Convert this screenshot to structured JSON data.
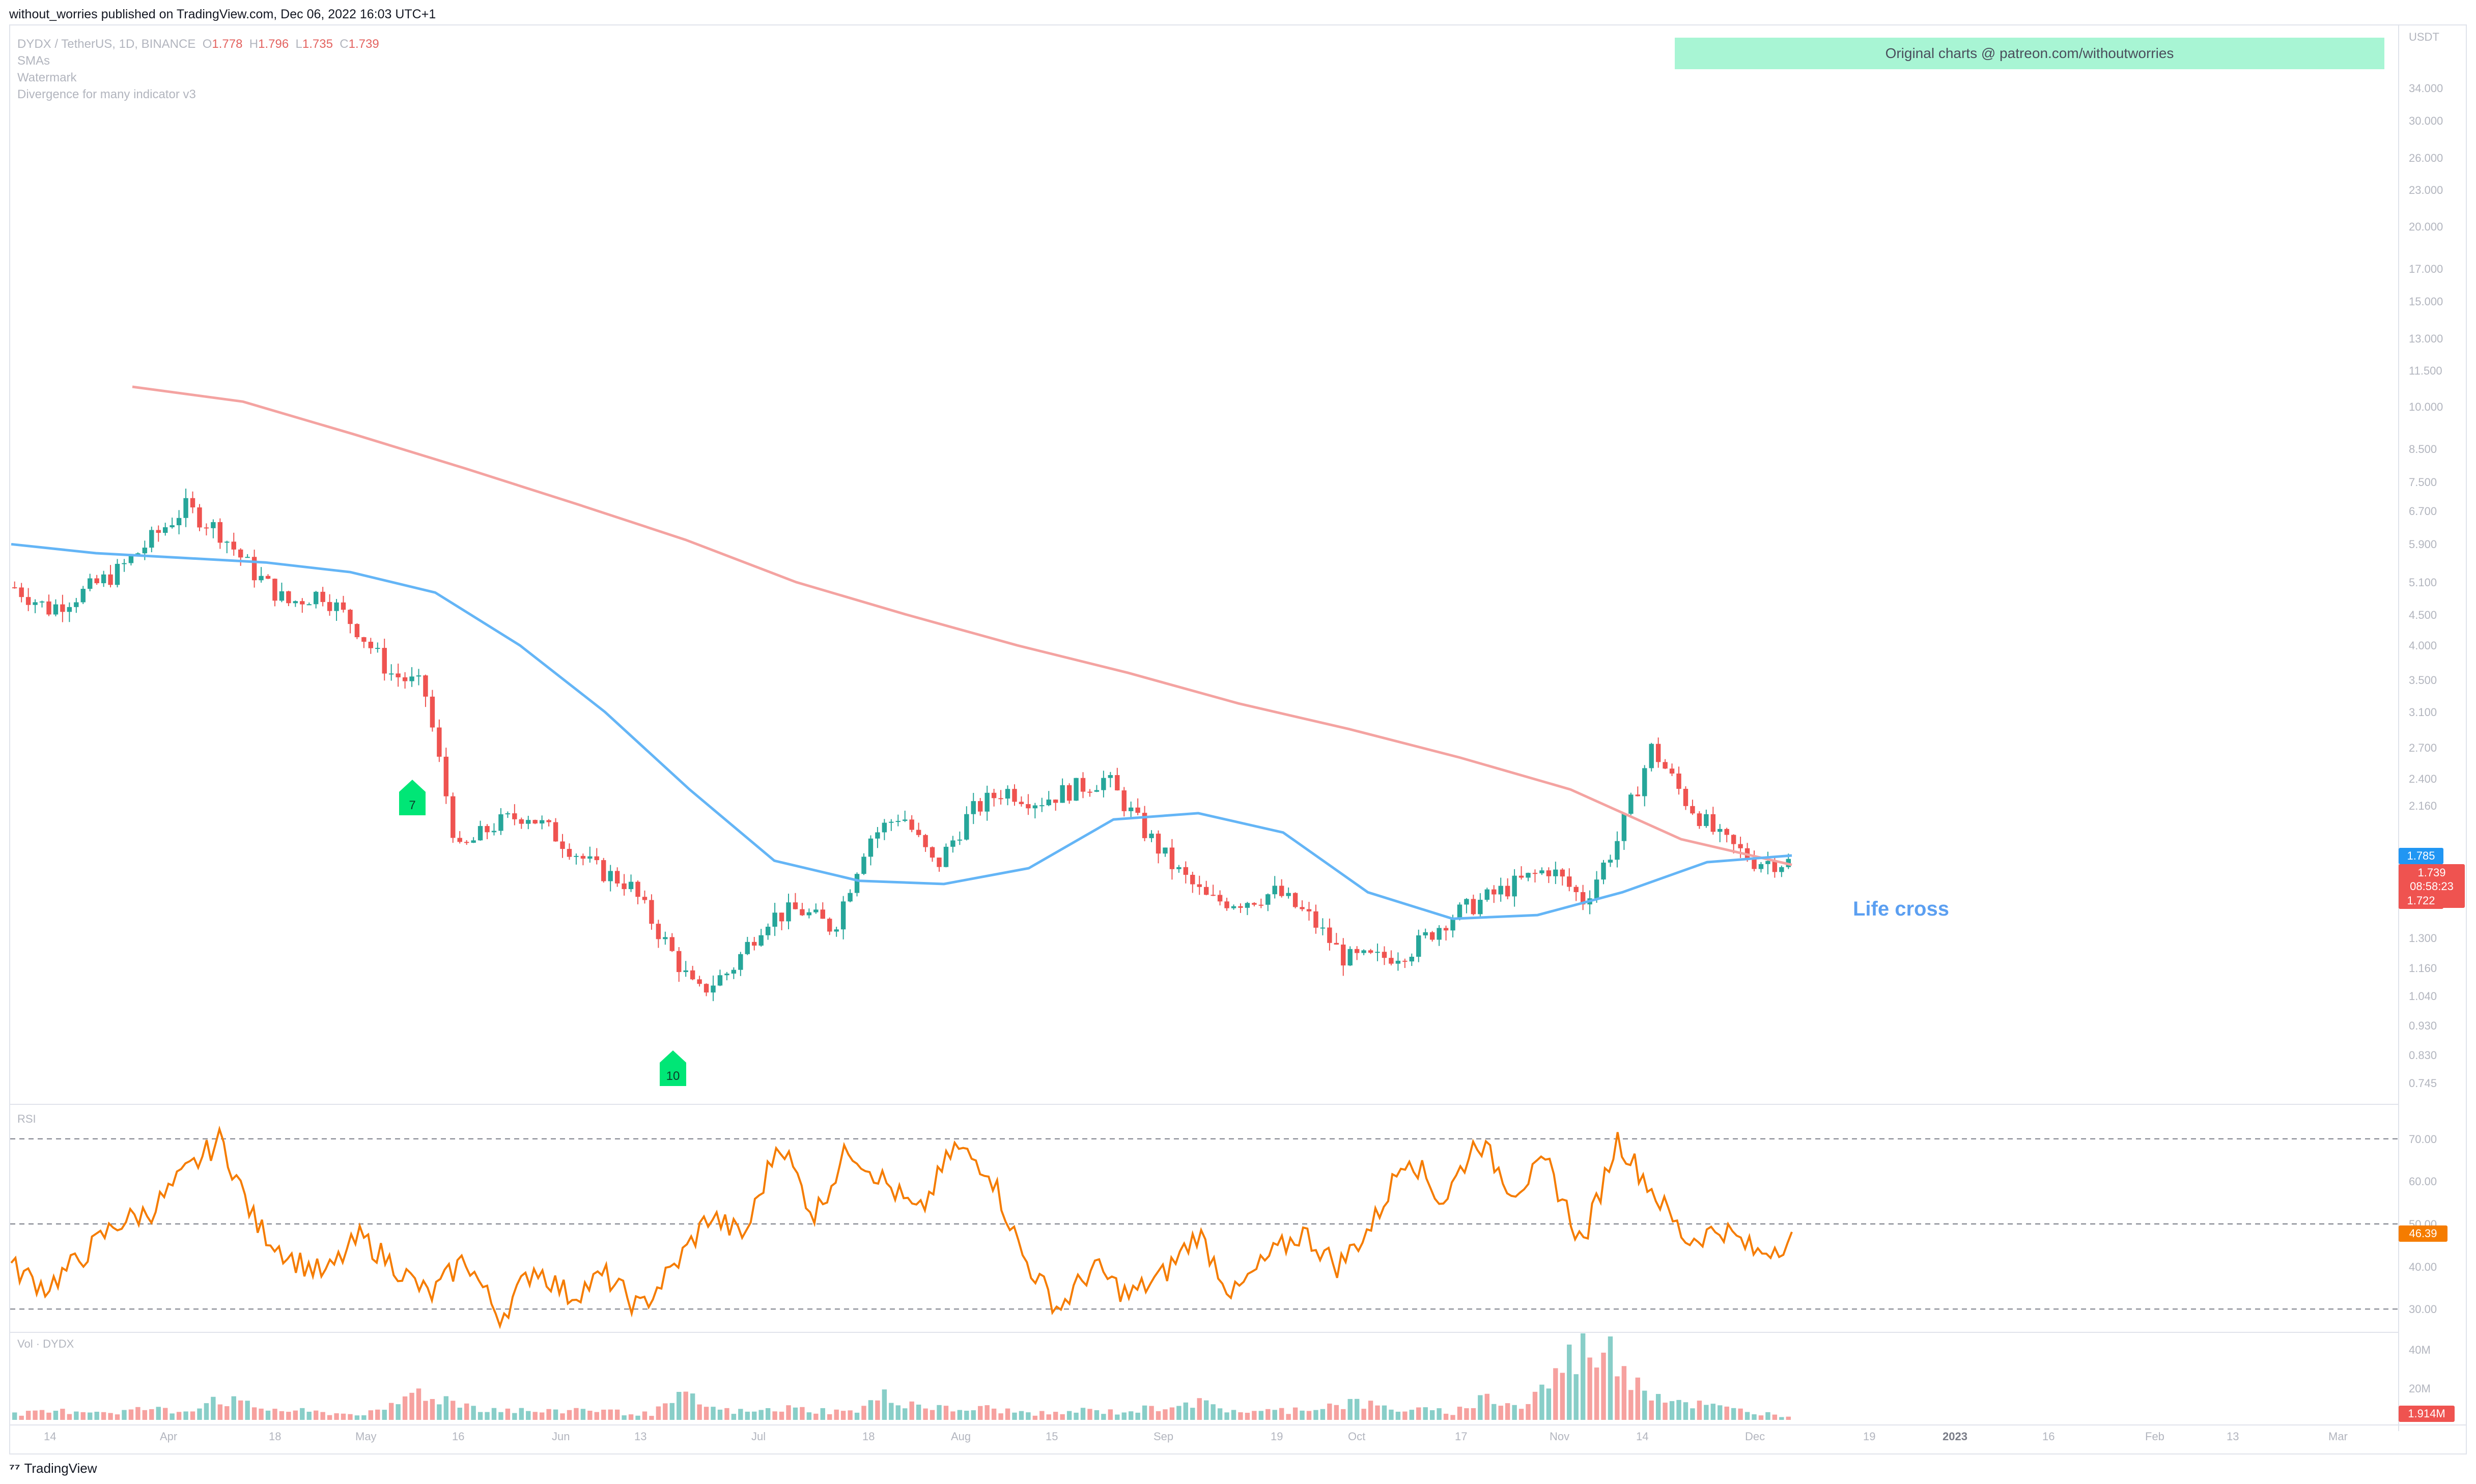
{
  "header": {
    "published_by": "without_worries published on TradingView.com, Dec 06, 2022 16:03 UTC+1"
  },
  "legend": {
    "symbol": "DYDX / TetherUS, 1D, BINANCE",
    "o_label": "O",
    "o_value": "1.778",
    "h_label": "H",
    "h_value": "1.796",
    "l_label": "L",
    "l_value": "1.735",
    "c_label": "C",
    "c_value": "1.739",
    "indicators": [
      "SMAs",
      "Watermark",
      "Divergence for many indicator v3"
    ]
  },
  "banner": {
    "text": "Original charts @ patreon.com/withoutworries"
  },
  "annotation": {
    "text": "Life cross"
  },
  "footer": {
    "brand": "TradingView"
  },
  "colors": {
    "up": "#26a69a",
    "down": "#ef5350",
    "sma_fast": "#64b5f6",
    "sma_slow": "#f4a3a1",
    "rsi": "#f57c00",
    "banner": "#a8f5d4",
    "marker": "#00e676"
  },
  "chart_data": [
    {
      "type": "candlestick",
      "title": "DYDX / TetherUS, 1D, BINANCE",
      "yscale": "log",
      "ylim": [
        0.7,
        40
      ],
      "price_axis_ticks": [
        "USDT",
        "34.000",
        "30.000",
        "26.000",
        "23.000",
        "20.000",
        "17.000",
        "15.000",
        "13.000",
        "11.500",
        "10.000",
        "8.500",
        "7.500",
        "6.700",
        "5.900",
        "5.100",
        "4.500",
        "4.000",
        "3.500",
        "3.100",
        "2.700",
        "2.400",
        "2.160",
        "1.300",
        "1.160",
        "1.040",
        "0.930",
        "0.830",
        "0.745"
      ],
      "time_ticks": [
        "14",
        "Apr",
        "18",
        "May",
        "16",
        "Jun",
        "13",
        "Jul",
        "18",
        "Aug",
        "15",
        "Sep",
        "19",
        "Oct",
        "17",
        "Nov",
        "14",
        "Dec",
        "19",
        "2023",
        "16",
        "Feb",
        "13",
        "Mar"
      ],
      "candles_close_approx": [
        5.0,
        4.6,
        4.9,
        5.3,
        6.0,
        6.8,
        6.2,
        5.3,
        4.7,
        4.9,
        4.3,
        3.6,
        3.4,
        1.8,
        2.0,
        2.1,
        1.9,
        1.7,
        1.6,
        1.3,
        1.05,
        1.15,
        1.4,
        1.45,
        1.35,
        1.9,
        2.1,
        1.7,
        2.1,
        2.3,
        2.2,
        2.3,
        2.4,
        2.0,
        1.7,
        1.5,
        1.5,
        1.55,
        1.4,
        1.2,
        1.2,
        1.25,
        1.4,
        1.5,
        1.6,
        1.7,
        1.5,
        1.9,
        2.7,
        2.2,
        1.9,
        1.75,
        1.74
      ],
      "series": [
        {
          "name": "SMA fast",
          "values_approx": [
            5.9,
            5.7,
            5.6,
            5.5,
            5.3,
            4.9,
            4.0,
            3.1,
            2.3,
            1.75,
            1.62,
            1.6,
            1.7,
            2.05,
            2.1,
            1.95,
            1.55,
            1.4,
            1.42,
            1.55,
            1.74,
            1.785
          ]
        },
        {
          "name": "SMA slow",
          "values_approx": [
            10.8,
            10.2,
            9.0,
            7.9,
            6.9,
            6.0,
            5.1,
            4.5,
            4.0,
            3.6,
            3.2,
            2.9,
            2.6,
            2.3,
            1.9,
            1.722
          ]
        }
      ],
      "last_values": {
        "sma_fast": "1.785",
        "close": "1.739",
        "countdown": "08:58:23",
        "sma_slow": "1.722"
      },
      "signals": [
        {
          "label": "7"
        },
        {
          "label": "10"
        }
      ]
    },
    {
      "type": "line",
      "title": "RSI",
      "ylim": [
        25,
        75
      ],
      "ticks": [
        "70.00",
        "60.00",
        "50.00",
        "40.00",
        "30.00"
      ],
      "bands": [
        30,
        50,
        70
      ],
      "values_approx": [
        40,
        35,
        42,
        50,
        53,
        62,
        70,
        50,
        42,
        38,
        47,
        40,
        33,
        42,
        28,
        40,
        33,
        38,
        30,
        40,
        52,
        47,
        70,
        52,
        68,
        60,
        52,
        68,
        63,
        42,
        30,
        40,
        33,
        38,
        48,
        33,
        42,
        48,
        40,
        50,
        67,
        55,
        70,
        58,
        64,
        45,
        70,
        58,
        46,
        49,
        43,
        46.39
      ],
      "last_value": "46.39"
    },
    {
      "type": "bar",
      "title": "Vol · DYDX",
      "ticks": [
        "40M",
        "20M"
      ],
      "values_approx_millions": [
        3,
        4,
        5,
        4,
        6,
        4,
        12,
        7,
        5,
        4,
        3,
        4,
        15,
        10,
        6,
        5,
        4,
        6,
        4,
        3,
        12,
        5,
        4,
        6,
        5,
        4,
        12,
        8,
        5,
        6,
        4,
        3,
        5,
        4,
        6,
        10,
        6,
        4,
        5,
        7,
        9,
        6,
        5,
        4,
        12,
        6,
        22,
        42,
        30,
        14,
        9,
        6,
        4,
        2
      ],
      "last_value": "1.914M"
    }
  ]
}
